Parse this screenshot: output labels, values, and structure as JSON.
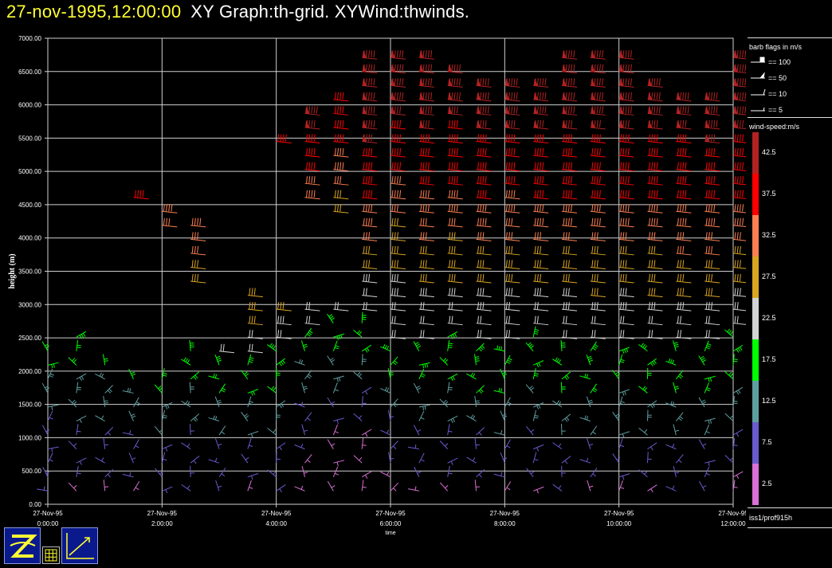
{
  "title": {
    "date": "27-nov-1995,12:00:00",
    "rest": "XY Graph:th-grid.  XYWind:thwinds."
  },
  "chart_data": {
    "type": "wind-barb",
    "xlabel": "time",
    "ylabel": "height (m)",
    "ylim": [
      0,
      7000
    ],
    "yticks": [
      "0.00",
      "500.00",
      "1000.00",
      "1500.00",
      "2000.00",
      "2500.00",
      "3000.00",
      "3500.00",
      "4000.00",
      "4500.00",
      "5000.00",
      "5500.00",
      "6000.00",
      "6500.00",
      "7000.00"
    ],
    "xticks": [
      {
        "date": "27-Nov-95",
        "time": "0:00:00"
      },
      {
        "date": "27-Nov-95",
        "time": "2:00:00"
      },
      {
        "date": "27-Nov-95",
        "time": "4:00:00"
      },
      {
        "date": "27-Nov-95",
        "time": "6:00:00"
      },
      {
        "date": "27-Nov-95",
        "time": "8:00:00"
      },
      {
        "date": "27-Nov-95",
        "time": "10:00:00"
      },
      {
        "date": "27-Nov-95",
        "time": "12:00:00"
      }
    ],
    "xlim_hours": [
      0,
      12
    ],
    "grid": true,
    "obs_interval_hours": 0.5,
    "range_gate_m": 210,
    "columns": [
      {
        "t": 0.0,
        "top": 2400,
        "speeds": [
          5,
          6,
          7,
          7,
          8,
          9,
          10,
          12,
          14,
          15,
          16,
          17
        ]
      },
      {
        "t": 0.5,
        "top": 2600,
        "speeds": [
          4,
          5,
          6,
          8,
          9,
          10,
          11,
          13,
          14,
          15,
          16,
          18,
          19
        ]
      },
      {
        "t": 1.0,
        "top": 2100,
        "speeds": [
          4,
          5,
          7,
          8,
          9,
          10,
          12,
          13,
          14,
          16,
          17
        ]
      },
      {
        "t": 1.5,
        "top": 4700,
        "speeds": [
          4,
          5,
          6,
          8,
          9,
          11,
          13,
          14,
          16,
          null,
          null,
          null,
          null,
          null,
          null,
          null,
          null,
          null,
          null,
          null,
          null,
          35,
          36
        ]
      },
      {
        "t": 2.0,
        "top": 4500,
        "speeds": [
          5,
          6,
          7,
          9,
          10,
          12,
          14,
          15,
          17,
          null,
          null,
          null,
          null,
          null,
          null,
          null,
          null,
          null,
          null,
          31,
          33,
          34
        ]
      },
      {
        "t": 2.5,
        "top": 4200,
        "speeds": [
          5,
          6,
          7,
          8,
          9,
          11,
          12,
          14,
          16,
          18,
          19,
          null,
          null,
          null,
          null,
          28,
          29,
          30,
          31,
          32
        ]
      },
      {
        "t": 3.0,
        "top": 2300,
        "speeds": [
          5,
          6,
          8,
          9,
          10,
          12,
          13,
          15,
          17,
          19,
          20
        ]
      },
      {
        "t": 3.5,
        "top": 3300,
        "speeds": [
          4,
          6,
          7,
          8,
          10,
          11,
          13,
          15,
          16,
          18,
          20,
          22,
          25,
          27,
          28,
          30
        ]
      },
      {
        "t": 4.0,
        "top": 5600,
        "speeds": [
          5,
          6,
          7,
          9,
          10,
          12,
          13,
          15,
          16,
          18,
          19,
          22,
          24,
          26,
          null,
          null,
          null,
          null,
          null,
          null,
          null,
          null,
          null,
          null,
          null,
          38
        ]
      },
      {
        "t": 4.5,
        "top": 5900,
        "speeds": [
          3,
          3,
          4,
          5,
          6,
          7,
          9,
          11,
          13,
          14,
          16,
          18,
          20,
          22,
          null,
          null,
          null,
          null,
          null,
          null,
          null,
          32,
          34,
          36,
          38,
          39,
          40,
          41
        ]
      },
      {
        "t": 5.0,
        "top": 6100,
        "speeds": [
          2,
          2,
          3,
          3,
          4,
          5,
          8,
          10,
          12,
          14,
          16,
          18,
          19,
          21,
          null,
          null,
          null,
          null,
          null,
          null,
          26,
          28,
          30,
          32,
          34,
          36,
          37,
          38,
          39
        ]
      },
      {
        "t": 5.5,
        "top": 6800,
        "speeds": [
          2,
          2,
          2,
          3,
          3,
          5,
          7,
          9,
          11,
          13,
          15,
          17,
          18,
          20,
          22,
          24,
          26,
          28,
          30,
          32,
          34,
          36,
          37,
          38,
          39,
          40,
          41,
          42,
          42,
          43,
          44,
          45
        ]
      },
      {
        "t": 6.0,
        "top": 6800,
        "speeds": [
          3,
          4,
          5,
          7,
          8,
          9,
          11,
          13,
          15,
          17,
          19,
          20,
          21,
          22,
          23,
          24,
          25,
          26,
          28,
          29,
          30,
          32,
          34,
          36,
          37,
          38,
          39,
          40,
          41,
          42,
          43,
          44
        ]
      },
      {
        "t": 6.5,
        "top": 6800,
        "speeds": [
          4,
          5,
          6,
          7,
          8,
          10,
          12,
          14,
          16,
          18,
          19,
          20,
          21,
          22,
          24,
          25,
          27,
          28,
          30,
          31,
          33,
          34,
          36,
          37,
          38,
          39,
          40,
          41,
          42,
          43,
          44,
          44
        ]
      },
      {
        "t": 7.0,
        "top": 6700,
        "speeds": [
          4,
          5,
          6,
          8,
          9,
          11,
          12,
          14,
          16,
          17,
          18,
          19,
          20,
          21,
          23,
          25,
          26,
          28,
          29,
          31,
          32,
          33,
          35,
          36,
          37,
          38,
          39,
          40,
          41,
          42,
          43
        ]
      },
      {
        "t": 7.5,
        "top": 6600,
        "speeds": [
          4,
          5,
          7,
          8,
          9,
          11,
          13,
          15,
          17,
          18,
          19,
          20,
          22,
          23,
          24,
          26,
          27,
          29,
          30,
          32,
          33,
          35,
          36,
          37,
          38,
          39,
          40,
          41,
          42,
          43
        ]
      },
      {
        "t": 8.0,
        "top": 6600,
        "speeds": [
          4,
          5,
          6,
          8,
          10,
          11,
          13,
          15,
          16,
          18,
          19,
          20,
          21,
          22,
          24,
          25,
          27,
          28,
          30,
          31,
          33,
          34,
          36,
          37,
          38,
          39,
          40,
          41,
          42,
          43
        ]
      },
      {
        "t": 8.5,
        "top": 6600,
        "speeds": [
          4,
          5,
          7,
          8,
          9,
          11,
          13,
          14,
          16,
          17,
          18,
          19,
          21,
          22,
          24,
          25,
          27,
          29,
          30,
          32,
          33,
          35,
          36,
          37,
          38,
          39,
          40,
          41,
          42,
          43
        ]
      },
      {
        "t": 9.0,
        "top": 6800,
        "speeds": [
          5,
          6,
          7,
          8,
          10,
          12,
          13,
          15,
          16,
          18,
          19,
          20,
          21,
          23,
          24,
          26,
          27,
          29,
          31,
          32,
          34,
          35,
          36,
          37,
          38,
          39,
          40,
          41,
          42,
          43,
          44,
          45
        ]
      },
      {
        "t": 9.5,
        "top": 6800,
        "speeds": [
          4,
          5,
          7,
          8,
          10,
          11,
          13,
          15,
          16,
          18,
          19,
          20,
          22,
          23,
          25,
          26,
          28,
          29,
          31,
          32,
          33,
          35,
          36,
          37,
          38,
          39,
          40,
          41,
          42,
          43,
          44,
          45
        ]
      },
      {
        "t": 10.0,
        "top": 6800,
        "speeds": [
          4,
          5,
          6,
          8,
          10,
          11,
          13,
          14,
          16,
          17,
          19,
          20,
          21,
          23,
          24,
          26,
          27,
          29,
          30,
          32,
          33,
          35,
          36,
          37,
          38,
          39,
          40,
          41,
          42,
          43,
          44,
          45
        ]
      },
      {
        "t": 10.5,
        "top": 6600,
        "speeds": [
          4,
          6,
          7,
          8,
          10,
          12,
          13,
          15,
          16,
          18,
          19,
          20,
          22,
          23,
          25,
          26,
          28,
          29,
          31,
          32,
          34,
          35,
          36,
          37,
          38,
          39,
          40,
          41,
          42,
          43
        ]
      },
      {
        "t": 11.0,
        "top": 6400,
        "speeds": [
          5,
          6,
          7,
          9,
          10,
          12,
          14,
          15,
          17,
          18,
          19,
          21,
          22,
          24,
          25,
          27,
          28,
          30,
          31,
          33,
          34,
          35,
          36,
          37,
          38,
          39,
          40,
          41,
          42
        ]
      },
      {
        "t": 11.5,
        "top": 6500,
        "speeds": [
          5,
          6,
          8,
          9,
          10,
          12,
          13,
          15,
          16,
          18,
          19,
          20,
          22,
          24,
          25,
          27,
          28,
          30,
          31,
          33,
          34,
          36,
          37,
          38,
          39,
          40,
          41,
          42,
          43
        ]
      },
      {
        "t": 12.0,
        "top": 6800,
        "speeds": [
          3,
          4,
          5,
          7,
          8,
          10,
          12,
          13,
          15,
          17,
          18,
          19,
          21,
          22,
          24,
          26,
          27,
          29,
          30,
          32,
          33,
          35,
          36,
          37,
          38,
          39,
          40,
          41,
          42,
          43,
          44,
          45
        ]
      }
    ]
  },
  "legend": {
    "barb_title": "barb flags in m/s",
    "barb_items": [
      "== 100",
      "== 50",
      "== 10",
      "== 5"
    ],
    "speed_title": "wind-speed:m/s",
    "speed_labels": [
      "42.5",
      "37.5",
      "32.5",
      "27.5",
      "22.5",
      "17.5",
      "12.5",
      "7.5",
      "2.5"
    ],
    "speed_colors": [
      "#b22222",
      "#ff0000",
      "#ff7f50",
      "#daa520",
      "#d3d3d3",
      "#00ff00",
      "#5f9ea0",
      "#6a5acd",
      "#da70d6"
    ],
    "source": "iss1/prof915h"
  },
  "icons": [
    "zeb-logo-icon",
    "grid-icon",
    "xy-graph-icon"
  ]
}
